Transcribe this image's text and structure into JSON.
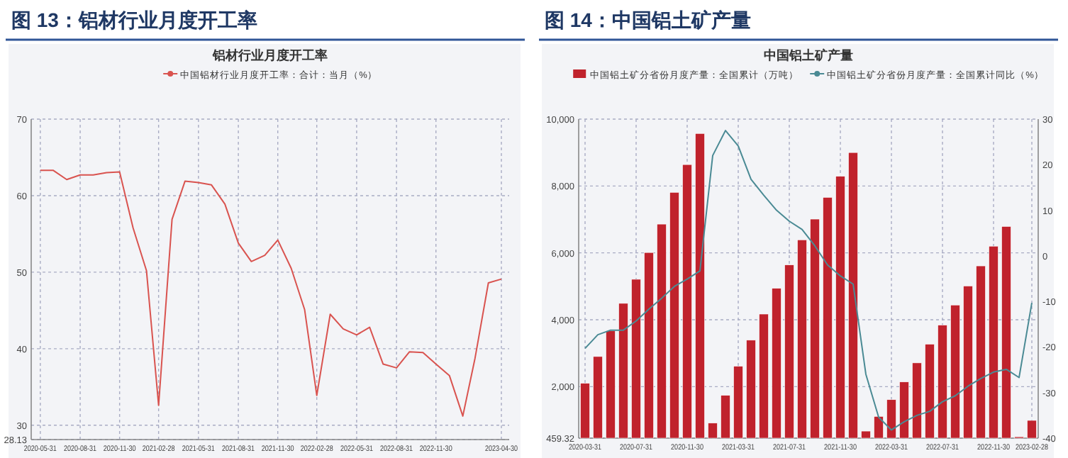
{
  "chart_data": [
    {
      "type": "line",
      "title": "图 13：铝材行业月度开工率",
      "subtitle": "铝材行业月度开工率",
      "x": [
        "2020-05-31",
        "2020-06-30",
        "2020-07-31",
        "2020-08-31",
        "2020-09-30",
        "2020-10-31",
        "2020-11-30",
        "2020-12-31",
        "2021-01-31",
        "2021-02-28",
        "2021-03-31",
        "2021-04-30",
        "2021-05-31",
        "2021-06-30",
        "2021-07-31",
        "2021-08-31",
        "2021-09-30",
        "2021-10-31",
        "2021-11-30",
        "2021-12-31",
        "2022-01-31",
        "2022-02-28",
        "2022-03-31",
        "2022-04-30",
        "2022-05-31",
        "2022-06-30",
        "2022-07-31",
        "2022-08-31",
        "2022-09-30",
        "2022-10-31",
        "2022-11-30",
        "2022-12-31",
        "2023-01-31",
        "2023-02-28",
        "2023-03-31",
        "2023-04-30"
      ],
      "series": [
        {
          "name": "中国铝材行业月度开工率：合计：当月（%）",
          "color": "#d9534f",
          "values": [
            63.3,
            63.3,
            62.1,
            62.7,
            62.7,
            63.0,
            63.1,
            55.8,
            50.2,
            32.6,
            56.9,
            61.9,
            61.7,
            61.4,
            58.9,
            53.8,
            51.4,
            52.2,
            54.2,
            50.5,
            45.1,
            33.9,
            44.5,
            42.6,
            41.8,
            42.8,
            38.0,
            37.5,
            39.6,
            39.5,
            38.0,
            36.5,
            31.2,
            38.7,
            48.6,
            49.1
          ]
        }
      ],
      "xlim": [
        "2020-05-10",
        "2023-05-18"
      ],
      "xticks": [
        "2020-05-31",
        "2020-08-31",
        "2020-11-30",
        "2021-02-28",
        "2021-05-31",
        "2021-08-31",
        "2021-11-30",
        "2022-02-28",
        "2022-05-31",
        "2022-08-31",
        "2022-11-30",
        "2023-04-30"
      ],
      "ylim": [
        28.13,
        70
      ],
      "yticks": [
        {
          "value": 28.13,
          "label": "28.13"
        },
        30,
        40,
        50,
        60,
        70
      ],
      "grid": true,
      "legend": "top",
      "line_style": "solid"
    },
    {
      "type": "bar",
      "title": "图 14：中国铝土矿产量",
      "subtitle": "中国铝土矿产量",
      "categories": [
        "2020-03-31",
        null,
        null,
        null,
        "2020-07-31",
        null,
        null,
        null,
        "2020-11-30",
        null,
        null,
        null,
        "2021-03-31",
        null,
        null,
        null,
        "2021-07-31",
        null,
        null,
        null,
        "2021-11-30",
        null,
        null,
        null,
        "2022-03-31",
        null,
        null,
        null,
        "2022-07-31",
        null,
        null,
        null,
        "2022-11-30",
        null,
        null,
        "2023-02-28"
      ],
      "series": [
        {
          "name": "中国铝土矿分省份月度产量：全国累计（万吨）",
          "type": "bar",
          "color": "#c0222c",
          "values": [
            2100,
            2900,
            3670,
            4490,
            5210,
            6010,
            6860,
            7810,
            8640,
            9570,
            910,
            1740,
            2610,
            3390,
            4170,
            4940,
            5640,
            6390,
            7010,
            7660,
            8290,
            9000,
            670,
            1110,
            1610,
            2140,
            2710,
            3270,
            3840,
            4440,
            5010,
            5610,
            6200,
            6790,
            500,
            990
          ]
        },
        {
          "name": "中国铝土矿分省份月度产量：全国累计同比（%）",
          "type": "line",
          "axis": "y2",
          "color": "#4a8a94",
          "values": [
            -20.3,
            -17.3,
            -16.3,
            -16.3,
            -14.3,
            -11.7,
            -9.3,
            -6.7,
            -5.1,
            -3.3,
            22.0,
            27.5,
            24.1,
            16.8,
            13.3,
            10.0,
            7.6,
            5.8,
            2.2,
            -2.0,
            -4.4,
            -6.2,
            -26.0,
            -35.4,
            -38.2,
            -36.4,
            -35.0,
            -34.1,
            -32.0,
            -30.7,
            -28.6,
            -26.9,
            -25.5,
            -24.9,
            -26.7,
            -10.3
          ]
        }
      ],
      "ylim": [
        459.32,
        10000
      ],
      "yticks": [
        {
          "value": 459.32,
          "label": "459.32"
        },
        {
          "value": 2000,
          "label": "2,000"
        },
        {
          "value": 4000,
          "label": "4,000"
        },
        {
          "value": 6000,
          "label": "6,000"
        },
        {
          "value": 8000,
          "label": "8,000"
        },
        {
          "value": 10000,
          "label": "10,000"
        }
      ],
      "y2lim": [
        -40,
        30
      ],
      "y2ticks": [
        -40,
        -30,
        -20,
        -10,
        0,
        10,
        20,
        30
      ],
      "grid": true,
      "legend": "top",
      "line_style": "solid"
    }
  ]
}
